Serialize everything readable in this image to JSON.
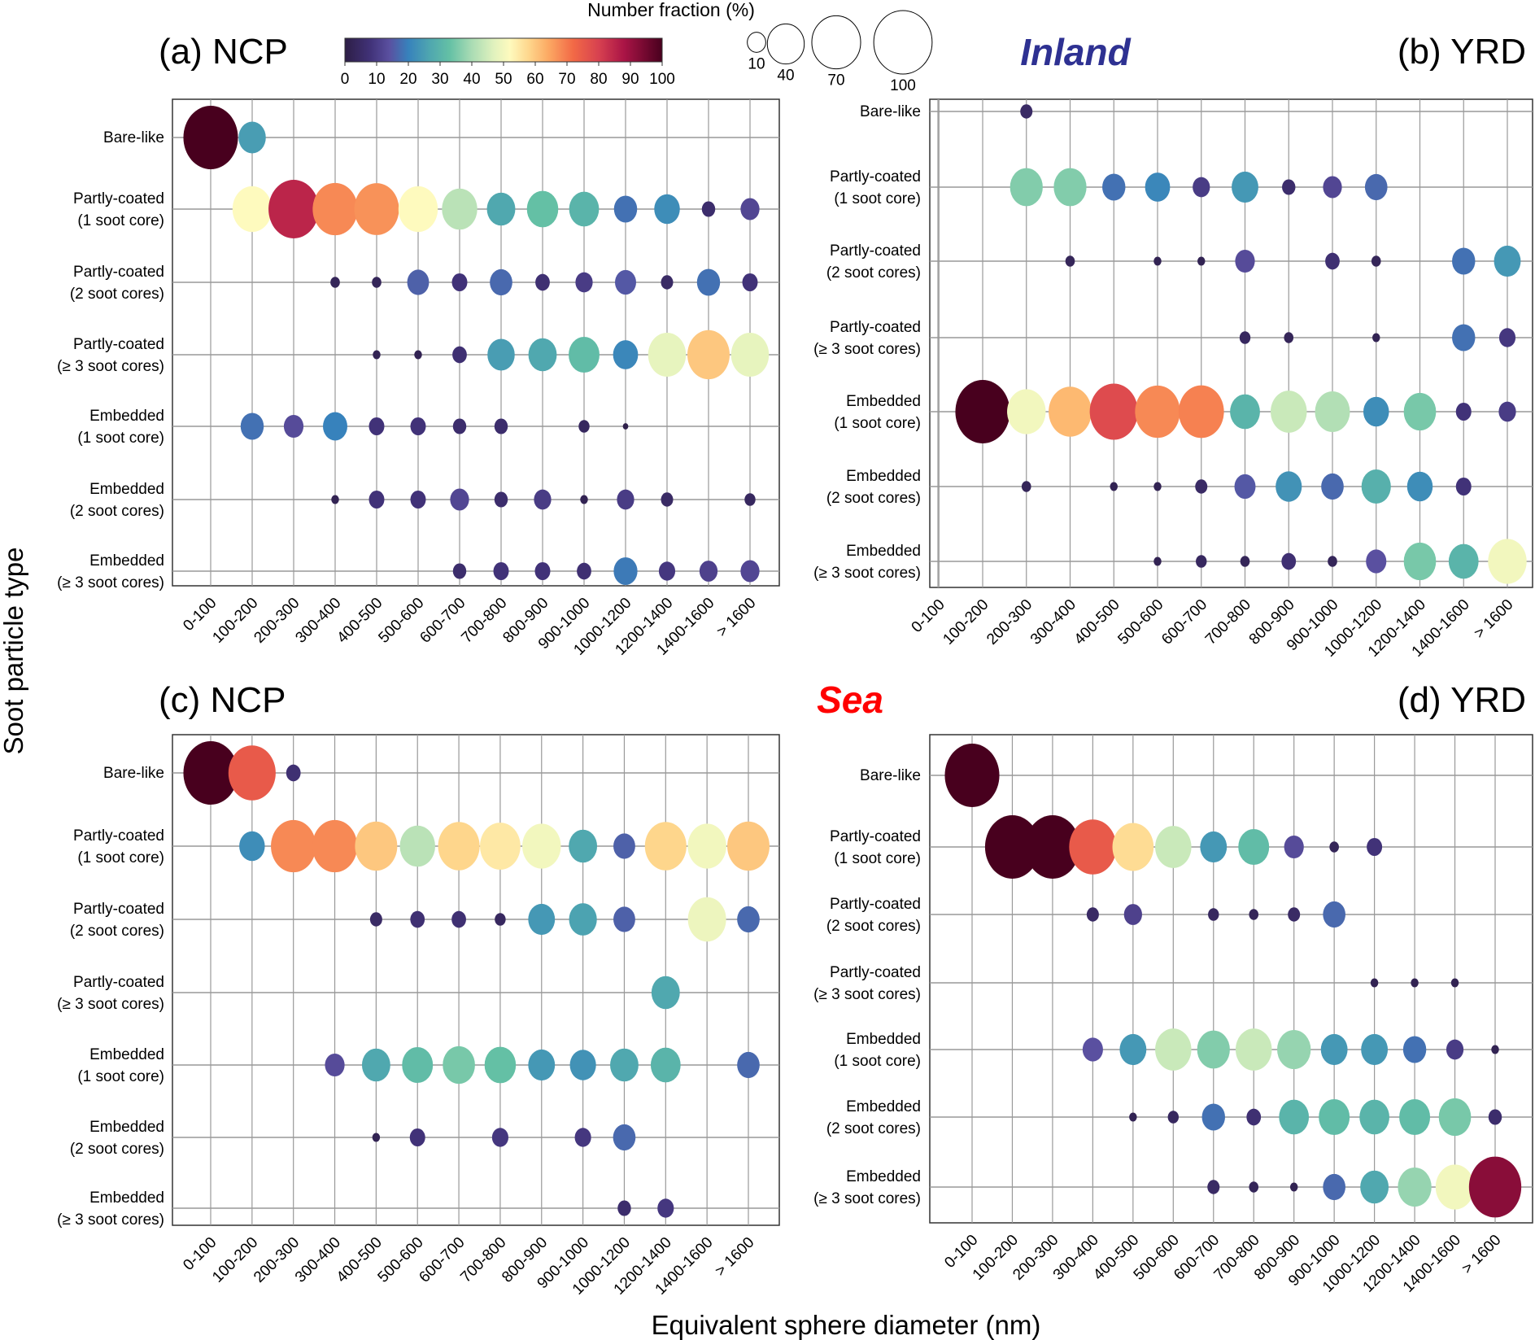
{
  "chart_data": {
    "type": "scatter",
    "subtype": "bubble-grid",
    "xlabel": "Equivalent sphere diameter (nm)",
    "ylabel": "Soot particle type",
    "categories_x": [
      "0-100",
      "100-200",
      "200-300",
      "300-400",
      "400-500",
      "500-600",
      "600-700",
      "700-800",
      "800-900",
      "900-1000",
      "1000-1200",
      "1200-1400",
      "1400-1600",
      "> 1600"
    ],
    "categories_y": [
      "Bare-like",
      "Partly-coated\n(1 soot core)",
      "Partly-coated\n(2 soot cores)",
      "Partly-coated\n(≥ 3 soot cores)",
      "Embedded\n(1 soot core)",
      "Embedded\n(2 soot cores)",
      "Embedded\n(≥ 3 soot cores)"
    ],
    "colorbar": {
      "title": "Number fraction (%)",
      "range": [
        0,
        100
      ],
      "ticks": [
        0,
        10,
        20,
        30,
        40,
        50,
        60,
        70,
        80,
        90,
        100
      ],
      "colormap": "Spectral_r"
    },
    "size_legend": {
      "values": [
        10,
        40,
        70,
        100
      ]
    },
    "group_labels": [
      {
        "text": "Inland",
        "color": "#2e3192"
      },
      {
        "text": "Sea",
        "color": "#ff0000"
      }
    ],
    "panels": [
      {
        "title": "(a) NCP",
        "group": "Inland",
        "values": [
          [
            100,
            25,
            null,
            null,
            null,
            null,
            null,
            null,
            null,
            null,
            null,
            null,
            null,
            null
          ],
          [
            null,
            52,
            85,
            68,
            67,
            52,
            42,
            27,
            33,
            30,
            18,
            22,
            6,
            12
          ],
          [
            null,
            null,
            null,
            3,
            3,
            16,
            8,
            17,
            7,
            10,
            15,
            5,
            18,
            8
          ],
          [
            null,
            null,
            null,
            null,
            2,
            2,
            7,
            25,
            27,
            32,
            21,
            48,
            60,
            48
          ],
          [
            null,
            18,
            13,
            20,
            8,
            8,
            6,
            6,
            null,
            4,
            1,
            null,
            null,
            null
          ],
          [
            null,
            null,
            null,
            2,
            8,
            8,
            12,
            6,
            10,
            2,
            10,
            5,
            null,
            4
          ],
          [
            null,
            null,
            null,
            null,
            null,
            null,
            6,
            8,
            8,
            7,
            19,
            9,
            11,
            12
          ]
        ]
      },
      {
        "title": "(b) YRD",
        "group": "Inland",
        "values": [
          [
            null,
            null,
            5,
            null,
            null,
            null,
            null,
            null,
            null,
            null,
            null,
            null,
            null,
            null
          ],
          [
            null,
            null,
            36,
            36,
            18,
            21,
            10,
            24,
            6,
            12,
            17,
            null,
            null,
            null
          ],
          [
            null,
            null,
            null,
            3,
            null,
            2,
            2,
            13,
            null,
            7,
            3,
            null,
            18,
            24
          ],
          [
            null,
            null,
            null,
            null,
            null,
            null,
            null,
            4,
            3,
            null,
            2,
            null,
            18,
            9
          ],
          [
            null,
            100,
            50,
            62,
            78,
            68,
            69,
            30,
            44,
            41,
            22,
            35,
            8,
            10
          ],
          [
            null,
            null,
            3,
            null,
            2,
            2,
            5,
            15,
            23,
            17,
            29,
            22,
            8,
            null
          ],
          [
            null,
            null,
            null,
            null,
            null,
            2,
            4,
            3,
            7,
            3,
            14,
            35,
            30,
            50
          ]
        ]
      },
      {
        "title": "(c) NCP",
        "group": "Sea",
        "values": [
          [
            100,
            75,
            7,
            null,
            null,
            null,
            null,
            null,
            null,
            null,
            null,
            null,
            null,
            null
          ],
          [
            null,
            22,
            68,
            68,
            60,
            42,
            58,
            55,
            50,
            27,
            16,
            58,
            50,
            60
          ],
          [
            null,
            null,
            null,
            null,
            5,
            7,
            7,
            4,
            24,
            26,
            16,
            null,
            49,
            17
          ],
          [
            null,
            null,
            null,
            null,
            null,
            null,
            null,
            null,
            null,
            null,
            null,
            27,
            null,
            null
          ],
          [
            null,
            null,
            null,
            13,
            27,
            32,
            35,
            33,
            24,
            23,
            27,
            30,
            null,
            17
          ],
          [
            null,
            null,
            null,
            null,
            2,
            8,
            null,
            9,
            null,
            9,
            17,
            null,
            null,
            null
          ],
          [
            null,
            null,
            null,
            null,
            null,
            null,
            null,
            null,
            null,
            null,
            6,
            9,
            null,
            null
          ]
        ]
      },
      {
        "title": "(d) YRD",
        "group": "Sea",
        "values": [
          [
            100,
            null,
            null,
            null,
            null,
            null,
            null,
            null,
            null,
            null,
            null,
            null,
            null,
            null
          ],
          [
            null,
            100,
            100,
            75,
            57,
            44,
            24,
            32,
            13,
            3,
            8,
            null,
            null,
            null
          ],
          [
            null,
            null,
            null,
            5,
            11,
            null,
            4,
            3,
            5,
            17,
            null,
            null,
            null,
            null
          ],
          [
            null,
            null,
            null,
            null,
            null,
            null,
            null,
            null,
            null,
            null,
            2,
            2,
            2,
            null
          ],
          [
            null,
            null,
            null,
            14,
            24,
            44,
            36,
            44,
            38,
            24,
            24,
            18,
            10,
            2
          ],
          [
            null,
            null,
            null,
            null,
            2,
            4,
            18,
            7,
            30,
            32,
            30,
            32,
            35,
            6
          ],
          [
            null,
            null,
            null,
            null,
            null,
            null,
            5,
            3,
            2,
            17,
            27,
            38,
            50,
            92
          ]
        ]
      }
    ]
  }
}
